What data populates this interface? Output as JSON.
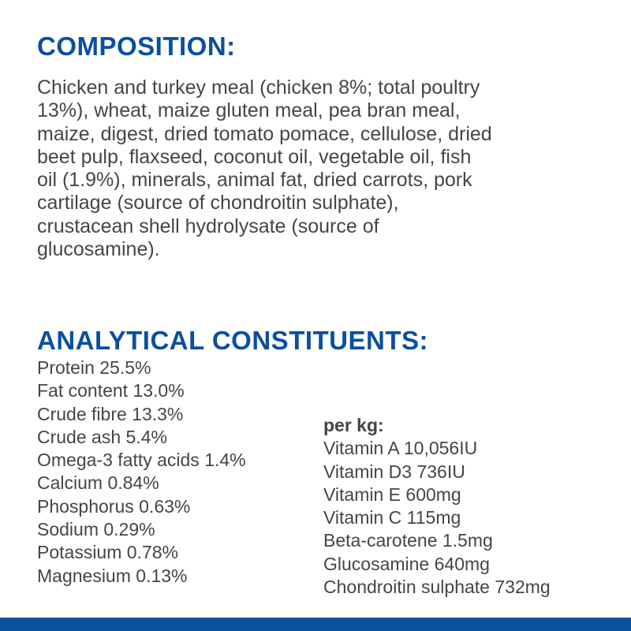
{
  "composition": {
    "heading": "COMPOSITION:",
    "lines": [
      "Chicken and turkey meal (chicken 8%; total poultry",
      "13%), wheat, maize gluten meal, pea bran meal,",
      "maize, digest, dried tomato pomace, cellulose, dried",
      "beet pulp, flaxseed, coconut oil, vegetable oil, fish",
      "oil (1.9%), minerals, animal fat, dried carrots, pork",
      "cartilage (source of chondroitin sulphate),",
      "crustacean shell hydrolysate (source of",
      "glucosamine)."
    ]
  },
  "analytical": {
    "heading": "ANALYTICAL CONSTITUENTS:",
    "left": [
      "Protein 25.5%",
      "Fat content 13.0%",
      "Crude fibre 13.3%",
      "Crude ash 5.4%",
      "Omega-3 fatty acids 1.4%",
      "Calcium 0.84%",
      "Phosphorus 0.63%",
      "Sodium 0.29%",
      "Potassium 0.78%",
      "Magnesium 0.13%"
    ],
    "per_kg_label": "per kg:",
    "right": [
      "Vitamin A 10,056IU",
      "Vitamin D3 736IU",
      "Vitamin E 600mg",
      "Vitamin C 115mg",
      "Beta-carotene 1.5mg",
      "Glucosamine 640mg",
      "Chondroitin sulphate 732mg"
    ]
  },
  "colors": {
    "accent": "#0b4f9f",
    "text": "#454545"
  }
}
